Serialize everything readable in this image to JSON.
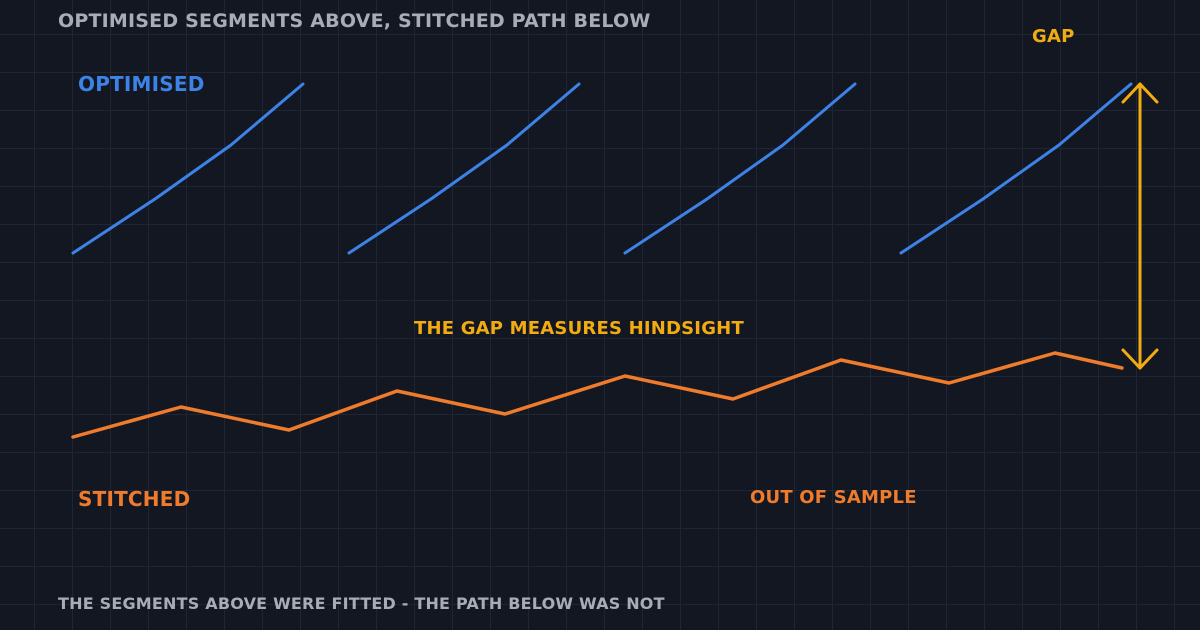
{
  "title": "OPTIMISED SEGMENTS ABOVE, STITCHED PATH BELOW",
  "labels": {
    "optimised": "OPTIMISED",
    "gap": "GAP",
    "gap_note": "THE GAP MEASURES HINDSIGHT",
    "stitched": "STITCHED",
    "out_of_sample": "OUT OF SAMPLE"
  },
  "footer": "THE SEGMENTS ABOVE WERE FITTED  -  THE PATH BELOW WAS NOT",
  "colors": {
    "background": "#131722",
    "grid": "#1f2534",
    "optimised": "#3d82e6",
    "stitched": "#ef7b2c",
    "gap": "#f2ac12",
    "text_muted": "#a9acb6"
  },
  "icons": {
    "gap_arrow": "double-headed-vertical-arrow-icon"
  }
}
